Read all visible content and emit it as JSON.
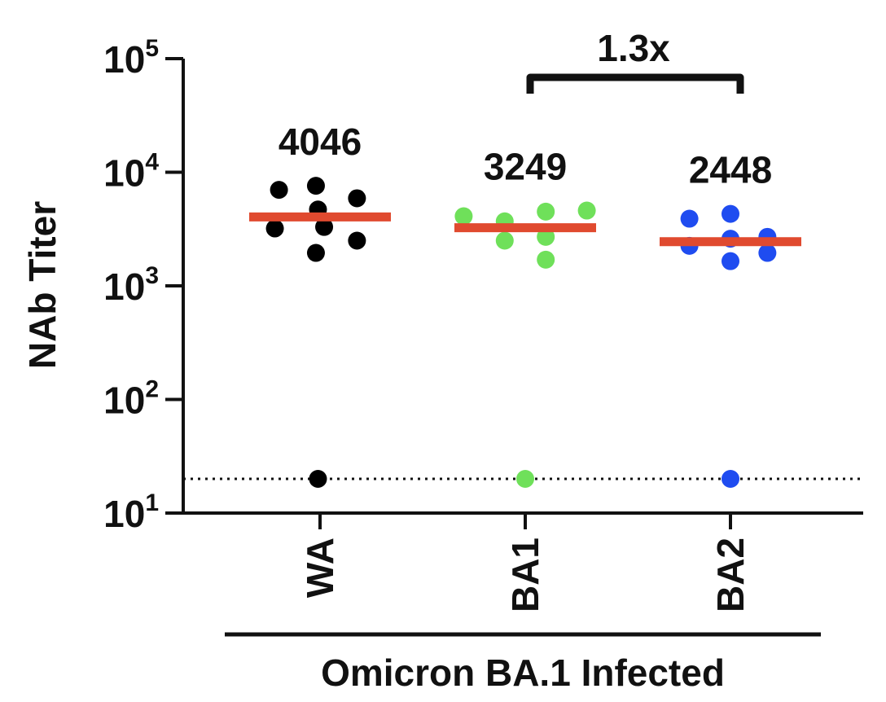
{
  "chart_data": {
    "type": "scatter",
    "yscale": "log",
    "ylim": [
      10,
      100000
    ],
    "ylabel": "NAb Titer",
    "xlabel": "Omicron BA.1 Infected",
    "y_ticks": [
      {
        "base": "10",
        "exp": "1",
        "value": 10
      },
      {
        "base": "10",
        "exp": "2",
        "value": 100
      },
      {
        "base": "10",
        "exp": "3",
        "value": 1000
      },
      {
        "base": "10",
        "exp": "4",
        "value": 10000
      },
      {
        "base": "10",
        "exp": "5",
        "value": 100000
      }
    ],
    "categories": [
      "WA",
      "BA1",
      "BA2"
    ],
    "limit_of_detection": 20,
    "series": [
      {
        "category": "WA",
        "color": "#000000",
        "median": 4046,
        "median_label": "4046",
        "points": [
          {
            "offset": -0.2,
            "y": 7000
          },
          {
            "offset": -0.02,
            "y": 7600
          },
          {
            "offset": 0.18,
            "y": 5900
          },
          {
            "offset": -0.22,
            "y": 3200
          },
          {
            "offset": -0.01,
            "y": 4700
          },
          {
            "offset": 0.02,
            "y": 3300
          },
          {
            "offset": 0.18,
            "y": 2500
          },
          {
            "offset": -0.02,
            "y": 1950
          },
          {
            "offset": -0.01,
            "y": 20
          }
        ]
      },
      {
        "category": "BA1",
        "color": "#6fe05a",
        "median": 3249,
        "median_label": "3249",
        "points": [
          {
            "offset": -0.3,
            "y": 4100
          },
          {
            "offset": -0.1,
            "y": 3700
          },
          {
            "offset": 0.1,
            "y": 4500
          },
          {
            "offset": 0.3,
            "y": 4600
          },
          {
            "offset": -0.1,
            "y": 2500
          },
          {
            "offset": 0.1,
            "y": 2700
          },
          {
            "offset": 0.1,
            "y": 1700
          },
          {
            "offset": 0.0,
            "y": 20
          }
        ]
      },
      {
        "category": "BA2",
        "color": "#1f4cf0",
        "median": 2448,
        "median_label": "2448",
        "points": [
          {
            "offset": -0.2,
            "y": 3900
          },
          {
            "offset": 0.0,
            "y": 4300
          },
          {
            "offset": 0.18,
            "y": 2700
          },
          {
            "offset": -0.2,
            "y": 2250
          },
          {
            "offset": 0.0,
            "y": 2600
          },
          {
            "offset": 0.18,
            "y": 1950
          },
          {
            "offset": 0.0,
            "y": 1650
          },
          {
            "offset": 0.0,
            "y": 20
          }
        ]
      }
    ],
    "comparisons": [
      {
        "from": "BA1",
        "to": "BA2",
        "label": "1.3x"
      }
    ]
  }
}
